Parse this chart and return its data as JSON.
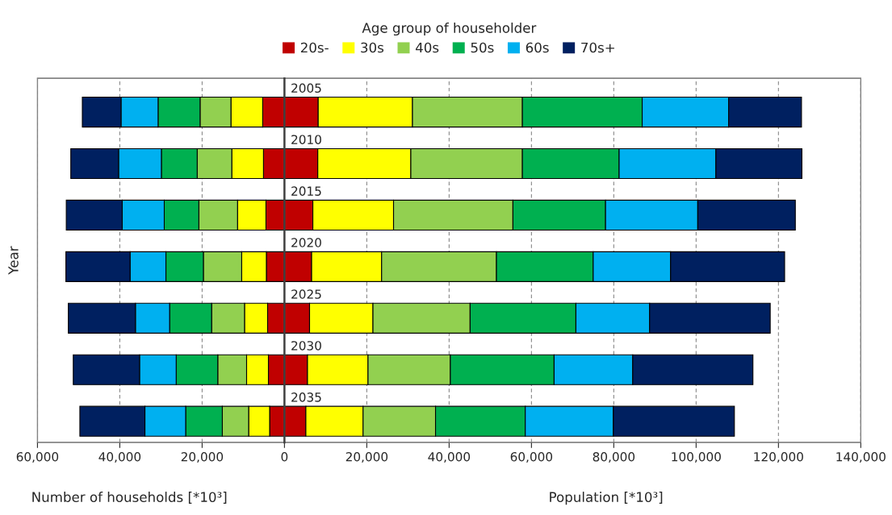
{
  "chart_data": {
    "type": "bar",
    "orientation": "horizontal",
    "stacked": true,
    "legend_title": "Age group of householder",
    "ylabel": "Year",
    "xlabel": "Number of households [*10³]",
    "annotations": [
      "Population [*10³]"
    ],
    "categories": [
      "2005",
      "2010",
      "2015",
      "2020",
      "2025",
      "2030",
      "2035"
    ],
    "series": [
      {
        "name": "20s-",
        "color": "#c00000",
        "values": [
          8200,
          8100,
          6900,
          6600,
          6100,
          5600,
          5200
        ]
      },
      {
        "name": "30s",
        "color": "#ffff00",
        "values": [
          22900,
          22600,
          19600,
          17000,
          15400,
          14700,
          13900
        ]
      },
      {
        "name": "40s",
        "color": "#92d050",
        "values": [
          26700,
          27100,
          29000,
          27900,
          23600,
          20000,
          17600
        ]
      },
      {
        "name": "50s",
        "color": "#00b050",
        "values": [
          29100,
          23500,
          22500,
          23500,
          25700,
          25200,
          21800
        ]
      },
      {
        "name": "60s",
        "color": "#00b0f0",
        "values": [
          21000,
          23500,
          22400,
          18800,
          17900,
          19100,
          21400
        ]
      },
      {
        "name": "70s+",
        "color": "#002060",
        "values": [
          17700,
          20900,
          23700,
          27700,
          29300,
          29200,
          29400
        ]
      },
      {
        "color": "#c00000",
        "values": [
          -5300,
          -5100,
          -4500,
          -4400,
          -4100,
          -3900,
          -3600
        ]
      },
      {
        "color": "#ffff00",
        "values": [
          -7700,
          -7700,
          -6900,
          -6000,
          -5600,
          -5300,
          -5100
        ]
      },
      {
        "color": "#92d050",
        "values": [
          -7500,
          -8400,
          -9400,
          -9300,
          -8000,
          -7000,
          -6400
        ]
      },
      {
        "color": "#00b050",
        "values": [
          -10200,
          -8700,
          -8400,
          -9100,
          -10200,
          -10100,
          -8900
        ]
      },
      {
        "color": "#00b0f0",
        "values": [
          -9000,
          -10400,
          -10200,
          -8700,
          -8300,
          -8900,
          -9900
        ]
      },
      {
        "color": "#002060",
        "values": [
          -9400,
          -11600,
          -13600,
          -15600,
          -16300,
          -16100,
          -15800
        ]
      }
    ],
    "xlim": [
      -60000,
      140000
    ],
    "xticks": [
      {
        "value": -60000,
        "label": "60,000"
      },
      {
        "value": -40000,
        "label": "40,000"
      },
      {
        "value": -20000,
        "label": "20,000"
      },
      0,
      {
        "value": 20000,
        "label": "20,000"
      },
      {
        "value": 40000,
        "label": "40,000"
      },
      {
        "value": 60000,
        "label": "60,000"
      },
      {
        "value": 80000,
        "label": "80,000"
      },
      {
        "value": 100000,
        "label": "100,000"
      },
      {
        "value": 120000,
        "label": "120,000"
      },
      {
        "value": 140000,
        "label": "140,000"
      }
    ],
    "grid": "x",
    "legend": "top",
    "tick_labels": "x"
  }
}
